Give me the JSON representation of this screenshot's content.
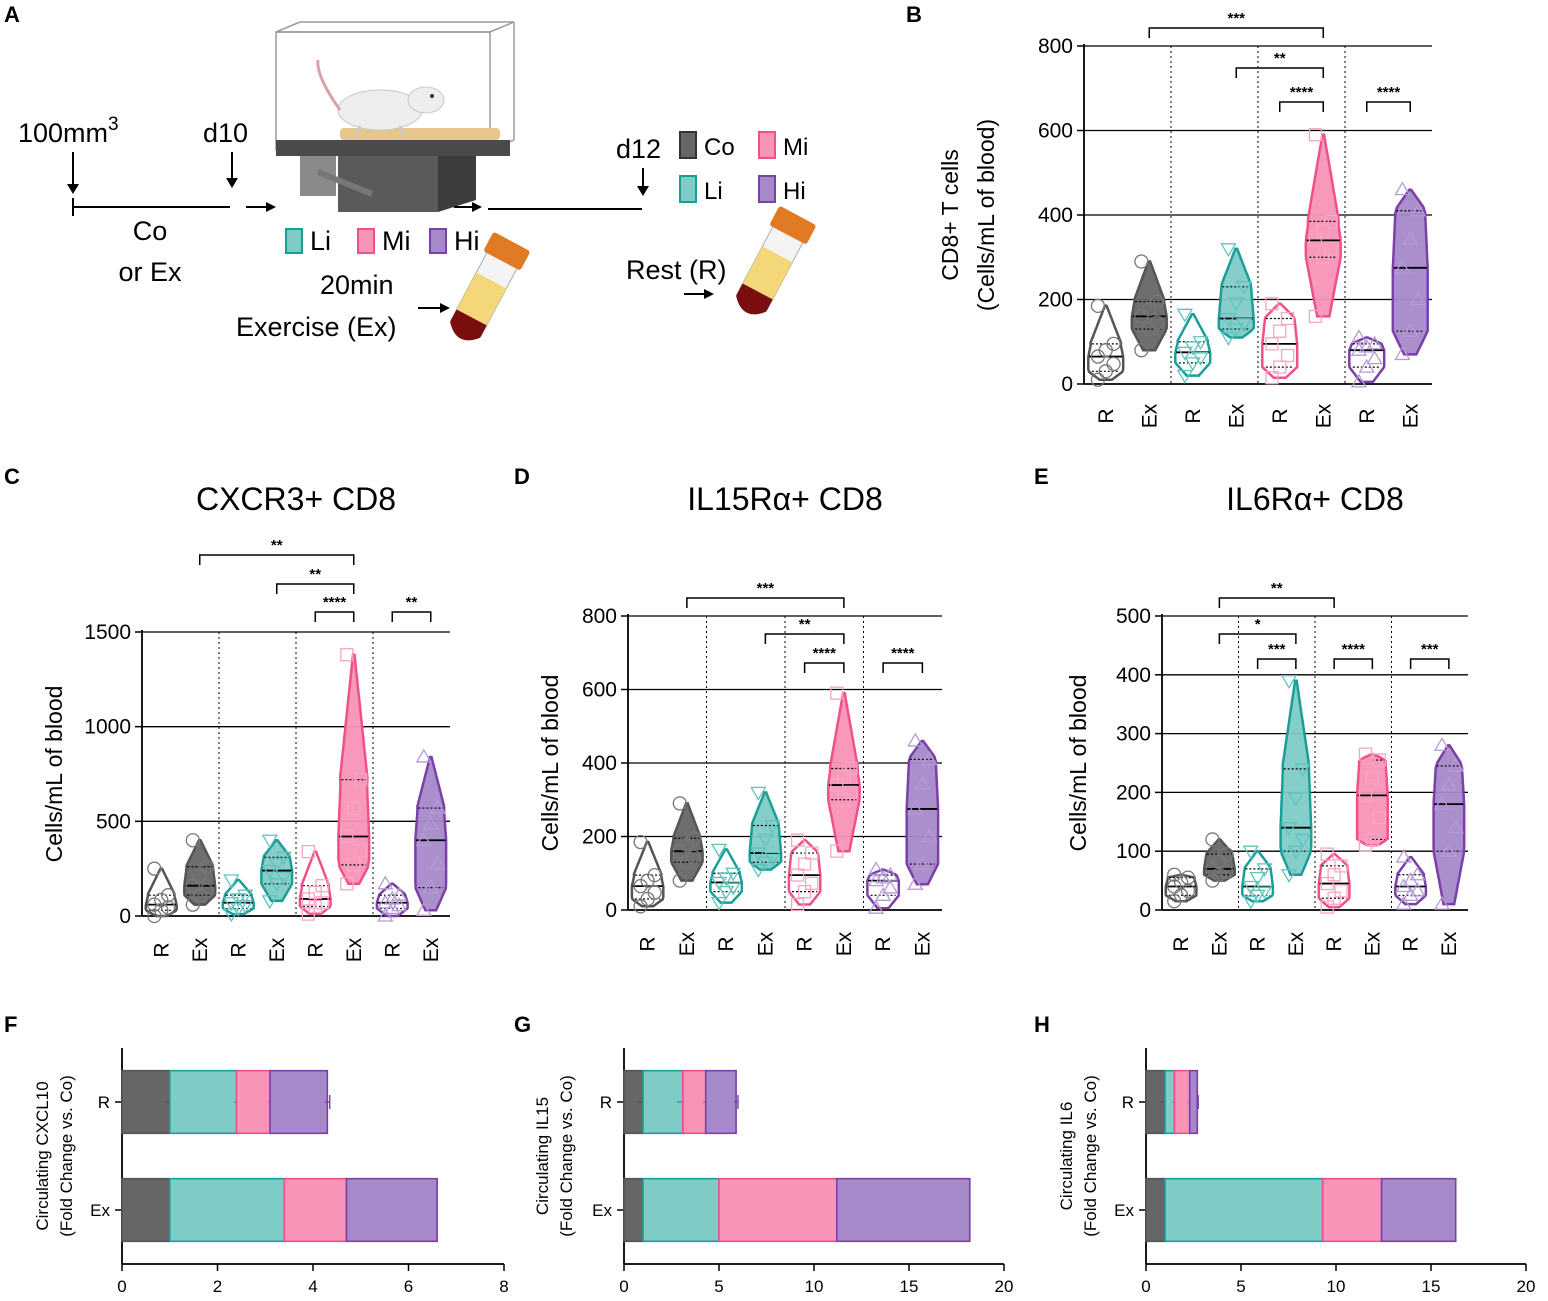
{
  "colors": {
    "Co": "#555555",
    "Li": "#1a9e98",
    "Mi": "#f0508a",
    "Hi": "#7b3fa8",
    "CoFill": "#666666",
    "LiFill": "#7fcbc6",
    "MiFill": "#f894b8",
    "HiFill": "#a689c9"
  },
  "panel_letters": [
    "A",
    "B",
    "C",
    "D",
    "E",
    "F",
    "G",
    "H"
  ],
  "schematic": {
    "tumor_volume": "100mm",
    "tumor_volume_sup": "3",
    "day_start": "d10",
    "day_end": "d12",
    "control_label_1": "Co",
    "control_label_2": "or Ex",
    "groups": [
      "Li",
      "Mi",
      "Hi"
    ],
    "exercise_line_1": "20min",
    "exercise_line_2": "Exercise (Ex)",
    "rest_label": "Rest (R)",
    "legend": [
      {
        "key": "Co",
        "label": "Co"
      },
      {
        "key": "Mi",
        "label": "Mi"
      },
      {
        "key": "Li",
        "label": "Li"
      },
      {
        "key": "Hi",
        "label": "Hi"
      }
    ],
    "treadmill_icon": "treadmill-mouse-icon",
    "tube_icon": "blood-tube-icon"
  },
  "chart_data": [
    {
      "id": "B",
      "type": "violin",
      "title": "",
      "ylabel": "CD8+ T cells",
      "ylabel2": "(Cells/mL of blood)",
      "ylim": [
        0,
        800
      ],
      "yticks": [
        0,
        200,
        400,
        600,
        800
      ],
      "groups": [
        "Co",
        "Li",
        "Mi",
        "Hi"
      ],
      "conditions": [
        "R",
        "Ex"
      ],
      "series": [
        {
          "group": "Co",
          "condition": "R",
          "min": 10,
          "q1": 30,
          "median": 65,
          "q3": 95,
          "max": 185
        },
        {
          "group": "Co",
          "condition": "Ex",
          "min": 80,
          "q1": 130,
          "median": 160,
          "q3": 195,
          "max": 290
        },
        {
          "group": "Li",
          "condition": "R",
          "min": 20,
          "q1": 50,
          "median": 75,
          "q3": 100,
          "max": 165
        },
        {
          "group": "Li",
          "condition": "Ex",
          "min": 110,
          "q1": 130,
          "median": 155,
          "q3": 230,
          "max": 320
        },
        {
          "group": "Mi",
          "condition": "R",
          "min": 15,
          "q1": 40,
          "median": 95,
          "q3": 155,
          "max": 190
        },
        {
          "group": "Mi",
          "condition": "Ex",
          "min": 160,
          "q1": 300,
          "median": 340,
          "q3": 385,
          "max": 590
        },
        {
          "group": "Hi",
          "condition": "R",
          "min": 5,
          "q1": 40,
          "median": 80,
          "q3": 95,
          "max": 110
        },
        {
          "group": "Hi",
          "condition": "Ex",
          "min": 70,
          "q1": 125,
          "median": 275,
          "q3": 410,
          "max": 460
        }
      ],
      "significance": [
        {
          "from": "Co-Ex",
          "to": "Mi-Ex",
          "label": "***"
        },
        {
          "from": "Li-Ex",
          "to": "Mi-Ex",
          "label": "**"
        },
        {
          "from": "Mi-R",
          "to": "Mi-Ex",
          "label": "****"
        },
        {
          "from": "Hi-R",
          "to": "Hi-Ex",
          "label": "****"
        }
      ]
    },
    {
      "id": "C",
      "type": "violin",
      "title": "CXCR3+ CD8",
      "ylabel": "Cells/mL of blood",
      "ylabel2": "",
      "ylim": [
        0,
        1500
      ],
      "yticks": [
        0,
        500,
        1000,
        1500
      ],
      "groups": [
        "Co",
        "Li",
        "Mi",
        "Hi"
      ],
      "conditions": [
        "R",
        "Ex"
      ],
      "series": [
        {
          "group": "Co",
          "condition": "R",
          "min": 0,
          "q1": 30,
          "median": 60,
          "q3": 110,
          "max": 250
        },
        {
          "group": "Co",
          "condition": "Ex",
          "min": 60,
          "q1": 110,
          "median": 160,
          "q3": 260,
          "max": 400
        },
        {
          "group": "Li",
          "condition": "R",
          "min": 10,
          "q1": 40,
          "median": 70,
          "q3": 110,
          "max": 190
        },
        {
          "group": "Li",
          "condition": "Ex",
          "min": 80,
          "q1": 170,
          "median": 240,
          "q3": 310,
          "max": 400
        },
        {
          "group": "Mi",
          "condition": "R",
          "min": 10,
          "q1": 50,
          "median": 90,
          "q3": 160,
          "max": 340
        },
        {
          "group": "Mi",
          "condition": "Ex",
          "min": 170,
          "q1": 270,
          "median": 420,
          "q3": 720,
          "max": 1380
        },
        {
          "group": "Hi",
          "condition": "R",
          "min": 0,
          "q1": 40,
          "median": 70,
          "q3": 110,
          "max": 170
        },
        {
          "group": "Hi",
          "condition": "Ex",
          "min": 30,
          "q1": 150,
          "median": 400,
          "q3": 570,
          "max": 840
        }
      ],
      "significance": [
        {
          "from": "Co-Ex",
          "to": "Mi-Ex",
          "label": "**"
        },
        {
          "from": "Li-Ex",
          "to": "Mi-Ex",
          "label": "**"
        },
        {
          "from": "Mi-R",
          "to": "Mi-Ex",
          "label": "****"
        },
        {
          "from": "Hi-R",
          "to": "Hi-Ex",
          "label": "**"
        }
      ]
    },
    {
      "id": "D",
      "type": "violin",
      "title": "IL15Rα+ CD8",
      "ylabel": "Cells/mL of blood",
      "ylabel2": "",
      "ylim": [
        0,
        800
      ],
      "yticks": [
        0,
        200,
        400,
        600,
        800
      ],
      "groups": [
        "Co",
        "Li",
        "Mi",
        "Hi"
      ],
      "conditions": [
        "R",
        "Ex"
      ],
      "series": [
        {
          "group": "Co",
          "condition": "R",
          "min": 10,
          "q1": 30,
          "median": 65,
          "q3": 95,
          "max": 185
        },
        {
          "group": "Co",
          "condition": "Ex",
          "min": 80,
          "q1": 130,
          "median": 160,
          "q3": 195,
          "max": 290
        },
        {
          "group": "Li",
          "condition": "R",
          "min": 20,
          "q1": 50,
          "median": 75,
          "q3": 100,
          "max": 165
        },
        {
          "group": "Li",
          "condition": "Ex",
          "min": 110,
          "q1": 130,
          "median": 155,
          "q3": 230,
          "max": 320
        },
        {
          "group": "Mi",
          "condition": "R",
          "min": 15,
          "q1": 50,
          "median": 95,
          "q3": 155,
          "max": 190
        },
        {
          "group": "Mi",
          "condition": "Ex",
          "min": 160,
          "q1": 300,
          "median": 340,
          "q3": 385,
          "max": 590
        },
        {
          "group": "Hi",
          "condition": "R",
          "min": 5,
          "q1": 40,
          "median": 80,
          "q3": 95,
          "max": 110
        },
        {
          "group": "Hi",
          "condition": "Ex",
          "min": 70,
          "q1": 125,
          "median": 275,
          "q3": 410,
          "max": 460
        }
      ],
      "significance": [
        {
          "from": "Co-Ex",
          "to": "Mi-Ex",
          "label": "***"
        },
        {
          "from": "Li-Ex",
          "to": "Mi-Ex",
          "label": "**"
        },
        {
          "from": "Mi-R",
          "to": "Mi-Ex",
          "label": "****"
        },
        {
          "from": "Hi-R",
          "to": "Hi-Ex",
          "label": "****"
        }
      ]
    },
    {
      "id": "E",
      "type": "violin",
      "title": "IL6Rα+ CD8",
      "ylabel": "Cells/mL of blood",
      "ylabel2": "",
      "ylim": [
        0,
        500
      ],
      "yticks": [
        0,
        100,
        200,
        300,
        400,
        500
      ],
      "groups": [
        "Co",
        "Li",
        "Mi",
        "Hi"
      ],
      "conditions": [
        "R",
        "Ex"
      ],
      "series": [
        {
          "group": "Co",
          "condition": "R",
          "min": 15,
          "q1": 25,
          "median": 40,
          "q3": 55,
          "max": 60
        },
        {
          "group": "Co",
          "condition": "Ex",
          "min": 50,
          "q1": 60,
          "median": 70,
          "q3": 95,
          "max": 120
        },
        {
          "group": "Li",
          "condition": "R",
          "min": 15,
          "q1": 25,
          "median": 40,
          "q3": 70,
          "max": 100
        },
        {
          "group": "Li",
          "condition": "Ex",
          "min": 60,
          "q1": 100,
          "median": 140,
          "q3": 240,
          "max": 390
        },
        {
          "group": "Mi",
          "condition": "R",
          "min": 5,
          "q1": 20,
          "median": 45,
          "q3": 75,
          "max": 95
        },
        {
          "group": "Mi",
          "condition": "Ex",
          "min": 110,
          "q1": 120,
          "median": 195,
          "q3": 255,
          "max": 265
        },
        {
          "group": "Hi",
          "condition": "R",
          "min": 10,
          "q1": 25,
          "median": 40,
          "q3": 60,
          "max": 90
        },
        {
          "group": "Hi",
          "condition": "Ex",
          "min": 10,
          "q1": 100,
          "median": 180,
          "q3": 245,
          "max": 280
        }
      ],
      "significance": [
        {
          "from": "Co-Ex",
          "to": "Mi-R",
          "label": "**"
        },
        {
          "from": "Co-Ex",
          "to": "Li-Ex",
          "label": "*"
        },
        {
          "from": "Li-R",
          "to": "Li-Ex",
          "label": "***"
        },
        {
          "from": "Mi-R",
          "to": "Mi-Ex",
          "label": "****"
        },
        {
          "from": "Hi-R",
          "to": "Hi-Ex",
          "label": "***"
        }
      ]
    },
    {
      "id": "F",
      "type": "bar",
      "orientation": "horizontal",
      "stacked": true,
      "ylabel": "Circulating CXCL10",
      "ylabel2": "(Fold Change vs. Co)",
      "categories": [
        "R",
        "Ex"
      ],
      "xlim": [
        0,
        8
      ],
      "xticks": [
        0,
        2,
        4,
        6,
        8
      ],
      "series": [
        {
          "name": "Co",
          "values": [
            1.0,
            1.0
          ],
          "errors": [
            0.1,
            0
          ]
        },
        {
          "name": "Li",
          "values": [
            1.4,
            2.4
          ],
          "errors": [
            0.05,
            0
          ]
        },
        {
          "name": "Mi",
          "values": [
            0.7,
            1.3
          ],
          "errors": [
            0.05,
            0
          ]
        },
        {
          "name": "Hi",
          "values": [
            1.2,
            1.9
          ],
          "errors": [
            0.05,
            0
          ]
        }
      ]
    },
    {
      "id": "G",
      "type": "bar",
      "orientation": "horizontal",
      "stacked": true,
      "ylabel": "Circulating IL15",
      "ylabel2": "(Fold Change vs. Co)",
      "categories": [
        "R",
        "Ex"
      ],
      "xlim": [
        0,
        20
      ],
      "xticks": [
        0,
        5,
        10,
        15,
        20
      ],
      "series": [
        {
          "name": "Co",
          "values": [
            1.0,
            1.0
          ],
          "errors": [
            0.3,
            0
          ]
        },
        {
          "name": "Li",
          "values": [
            2.1,
            4.0
          ],
          "errors": [
            0.3,
            0
          ]
        },
        {
          "name": "Mi",
          "values": [
            1.2,
            6.2
          ],
          "errors": [
            0.15,
            0
          ]
        },
        {
          "name": "Hi",
          "values": [
            1.6,
            7.0
          ],
          "errors": [
            0.1,
            0
          ]
        }
      ]
    },
    {
      "id": "H",
      "type": "bar",
      "orientation": "horizontal",
      "stacked": true,
      "ylabel": "Circulating IL6",
      "ylabel2": "(Fold Change vs. Co)",
      "categories": [
        "R",
        "Ex"
      ],
      "xlim": [
        0,
        20
      ],
      "xticks": [
        0,
        5,
        10,
        15,
        20
      ],
      "series": [
        {
          "name": "Co",
          "values": [
            1.0,
            1.0
          ],
          "errors": [
            0.2,
            0
          ]
        },
        {
          "name": "Li",
          "values": [
            0.5,
            8.3
          ],
          "errors": [
            0.1,
            0
          ]
        },
        {
          "name": "Mi",
          "values": [
            0.8,
            3.1
          ],
          "errors": [
            0.1,
            0
          ]
        },
        {
          "name": "Hi",
          "values": [
            0.4,
            3.9
          ],
          "errors": [
            0.05,
            0
          ]
        }
      ]
    }
  ]
}
